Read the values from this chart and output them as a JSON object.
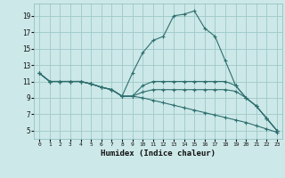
{
  "bg_color": "#cde8e8",
  "grid_color": "#9ec8c8",
  "line_color": "#2d6e6e",
  "xlabel": "Humidex (Indice chaleur)",
  "xlim": [
    -0.5,
    23.5
  ],
  "ylim": [
    4,
    20.5
  ],
  "yticks": [
    5,
    7,
    9,
    11,
    13,
    15,
    17,
    19
  ],
  "xticks": [
    0,
    1,
    2,
    3,
    4,
    5,
    6,
    7,
    8,
    9,
    10,
    11,
    12,
    13,
    14,
    15,
    16,
    17,
    18,
    19,
    20,
    21,
    22,
    23
  ],
  "lines": [
    {
      "x": [
        0,
        1,
        2,
        3,
        4,
        5,
        6,
        7,
        8,
        9,
        10,
        11,
        12,
        13,
        14,
        15,
        16,
        17,
        18,
        19,
        20,
        21,
        22,
        23
      ],
      "y": [
        12.0,
        11.0,
        11.0,
        11.0,
        11.0,
        10.7,
        10.3,
        10.0,
        9.2,
        12.0,
        14.5,
        16.0,
        16.5,
        19.0,
        19.2,
        19.6,
        17.5,
        16.5,
        13.5,
        10.5,
        9.0,
        8.0,
        6.5,
        5.0
      ]
    },
    {
      "x": [
        0,
        1,
        2,
        3,
        4,
        5,
        6,
        7,
        8,
        9,
        10,
        11,
        12,
        13,
        14,
        15,
        16,
        17,
        18,
        19,
        20,
        21,
        22,
        23
      ],
      "y": [
        12.0,
        11.0,
        11.0,
        11.0,
        11.0,
        10.7,
        10.3,
        10.0,
        9.2,
        9.2,
        10.5,
        11.0,
        11.0,
        11.0,
        11.0,
        11.0,
        11.0,
        11.0,
        11.0,
        10.5,
        9.0,
        8.0,
        6.5,
        5.0
      ]
    },
    {
      "x": [
        0,
        1,
        2,
        3,
        4,
        5,
        6,
        7,
        8,
        9,
        10,
        11,
        12,
        13,
        14,
        15,
        16,
        17,
        18,
        19,
        20,
        21,
        22,
        23
      ],
      "y": [
        12.0,
        11.0,
        11.0,
        11.0,
        11.0,
        10.7,
        10.3,
        10.0,
        9.2,
        9.2,
        9.7,
        10.0,
        10.0,
        10.0,
        10.0,
        10.0,
        10.0,
        10.0,
        10.0,
        9.8,
        9.0,
        8.0,
        6.5,
        5.0
      ]
    },
    {
      "x": [
        0,
        1,
        2,
        3,
        4,
        5,
        6,
        7,
        8,
        9,
        10,
        11,
        12,
        13,
        14,
        15,
        16,
        17,
        18,
        19,
        20,
        21,
        22,
        23
      ],
      "y": [
        12.0,
        11.0,
        11.0,
        11.0,
        11.0,
        10.7,
        10.3,
        10.0,
        9.2,
        9.2,
        9.0,
        8.7,
        8.4,
        8.1,
        7.8,
        7.5,
        7.2,
        6.9,
        6.6,
        6.3,
        6.0,
        5.6,
        5.2,
        4.8
      ]
    }
  ]
}
